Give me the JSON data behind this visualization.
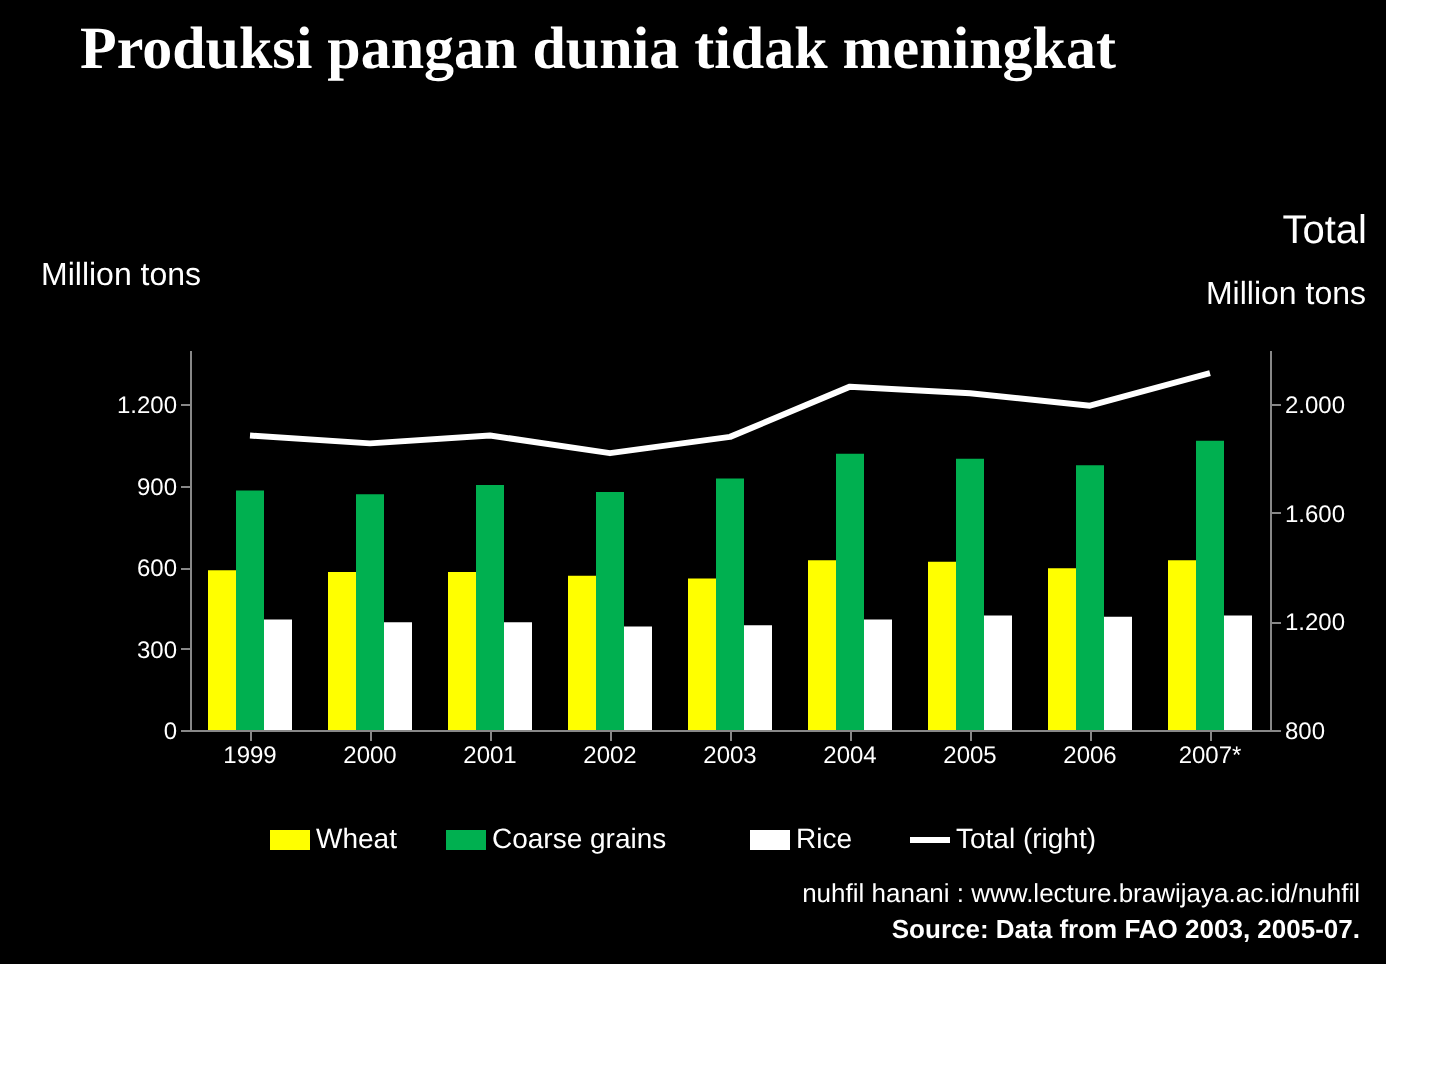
{
  "chart_data": {
    "type": "bar",
    "title": "Produksi pangan dunia tidak meningkat",
    "ylabel": "Million tons",
    "y2label": "Total",
    "categories": [
      "1999",
      "2000",
      "2001",
      "2002",
      "2003",
      "2004",
      "2005",
      "2006",
      "2007*"
    ],
    "series": [
      {
        "name": "Wheat",
        "color": "#ffff00",
        "values": [
          589,
          582,
          582,
          568,
          558,
          625,
          620,
          596,
          625
        ]
      },
      {
        "name": "Coarse grains",
        "color": "#00b050",
        "values": [
          882,
          869,
          903,
          877,
          927,
          1018,
          999,
          975,
          1066
        ]
      },
      {
        "name": "Rice",
        "color": "#ffffff",
        "values": [
          407,
          397,
          397,
          381,
          386,
          407,
          422,
          417,
          422
        ]
      },
      {
        "name": "Total (right)",
        "type": "line",
        "axis": "y2",
        "color": "#ffffff",
        "values": [
          1885,
          1856,
          1885,
          1820,
          1880,
          2065,
          2041,
          1995,
          2115
        ]
      }
    ],
    "ylim": [
      0,
      1400
    ],
    "yticks": [
      0,
      300,
      600,
      900,
      {
        "value": 1200,
        "label": "1.200"
      }
    ],
    "y2lim": [
      800,
      2200
    ],
    "y2ticks": [
      800,
      {
        "value": 1200,
        "label": "1.200"
      },
      {
        "value": 1600,
        "label": "1.600"
      },
      {
        "value": 2000,
        "label": "2.000"
      }
    ],
    "annotations": [
      "Million tons",
      "nuhfil hanani : www.lecture.brawijaya.ac.id/nuhfil",
      "Source: Data from FAO 2003, 2005-07."
    ],
    "legend": "bottom",
    "grid": false
  }
}
